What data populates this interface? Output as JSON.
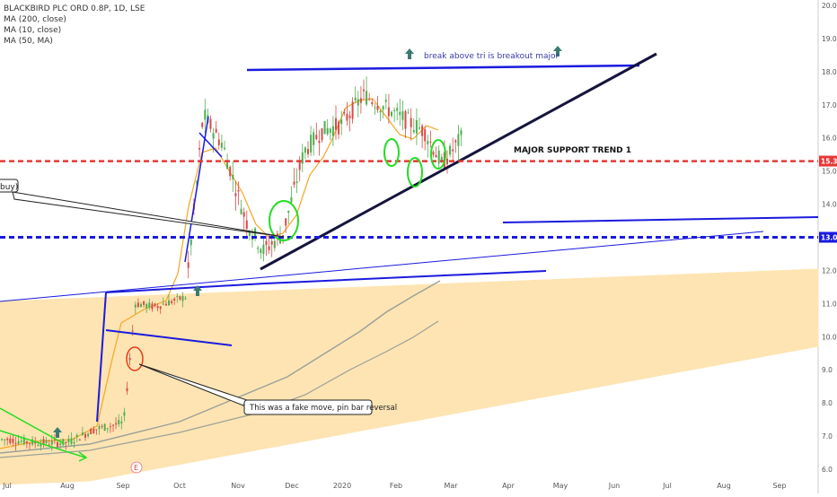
{
  "header": {
    "symbol_line": "BLACKBIRD PLC ORD 0.8P, 1D, LSE",
    "indicators": [
      "MA (200, close)",
      "MA (10, close)",
      "MA (50, MA)"
    ]
  },
  "colors": {
    "blue_line": "#1a1adf",
    "dark_line": "#1a1a4a",
    "green_mark": "#22dd22",
    "red_mark": "#e83a1a",
    "wedge_fill": "#fde4b2",
    "ma_orange": "#f5a623",
    "ma_gray": "#9aa09a",
    "up_candle": "#4caf50",
    "down_candle": "#d94a4a",
    "support_red": "#e53935",
    "support_blue": "#1a1adf",
    "arrow_teal": "#3a7a72"
  },
  "annotations": {
    "breakout_text": "break above tri  is breakout major",
    "support_text": "MAJOR SUPPORT TREND 1",
    "fake_move_text": "This was a fake move, pin bar reversal",
    "buy_callout_text": "buy)",
    "earnings_marker": "E"
  },
  "chart_data": {
    "type": "candlestick",
    "title": "BLACKBIRD PLC ORD 0.8P, 1D, LSE",
    "x_tick_labels": [
      "Jul",
      "Aug",
      "Sep",
      "Oct",
      "Nov",
      "Dec",
      "2020",
      "Feb",
      "Mar",
      "Apr",
      "May",
      "Jun",
      "Jul",
      "Aug",
      "Sep"
    ],
    "y_tick_labels": [
      "6.0",
      "7.0",
      "8.0",
      "9.0",
      "10.0",
      "11.0",
      "12.0",
      "13.0",
      "14.0",
      "15.0",
      "16.0",
      "17.0",
      "18.0",
      "19.0",
      "20.0"
    ],
    "ylim": [
      5.9,
      20.1
    ],
    "price_labels": [
      {
        "value": 15.3,
        "label": "15.3",
        "color": "#e53935"
      },
      {
        "value": 13.0,
        "label": "13.0",
        "color": "#1a1adf"
      }
    ],
    "horizontal_levels": [
      {
        "value": 15.3,
        "style": "dashed",
        "color": "#e53935"
      },
      {
        "value": 13.0,
        "style": "dashed",
        "color": "#1a1adf"
      }
    ],
    "price_series": {
      "dates": [
        "2019-07-01",
        "2019-07-15",
        "2019-08-01",
        "2019-08-15",
        "2019-08-30",
        "2019-09-05",
        "2019-09-15",
        "2019-10-01",
        "2019-10-10",
        "2019-10-20",
        "2019-11-01",
        "2019-11-10",
        "2019-11-20",
        "2019-12-01",
        "2019-12-10",
        "2019-12-20",
        "2020-01-01",
        "2020-01-15",
        "2020-02-01",
        "2020-02-10",
        "2020-02-20"
      ],
      "close": [
        6.9,
        6.8,
        6.8,
        7.2,
        7.4,
        11.0,
        10.9,
        11.2,
        16.7,
        15.8,
        13.5,
        12.6,
        13.1,
        15.6,
        16.2,
        16.4,
        17.3,
        16.8,
        16.2,
        15.2,
        16.0
      ]
    }
  }
}
